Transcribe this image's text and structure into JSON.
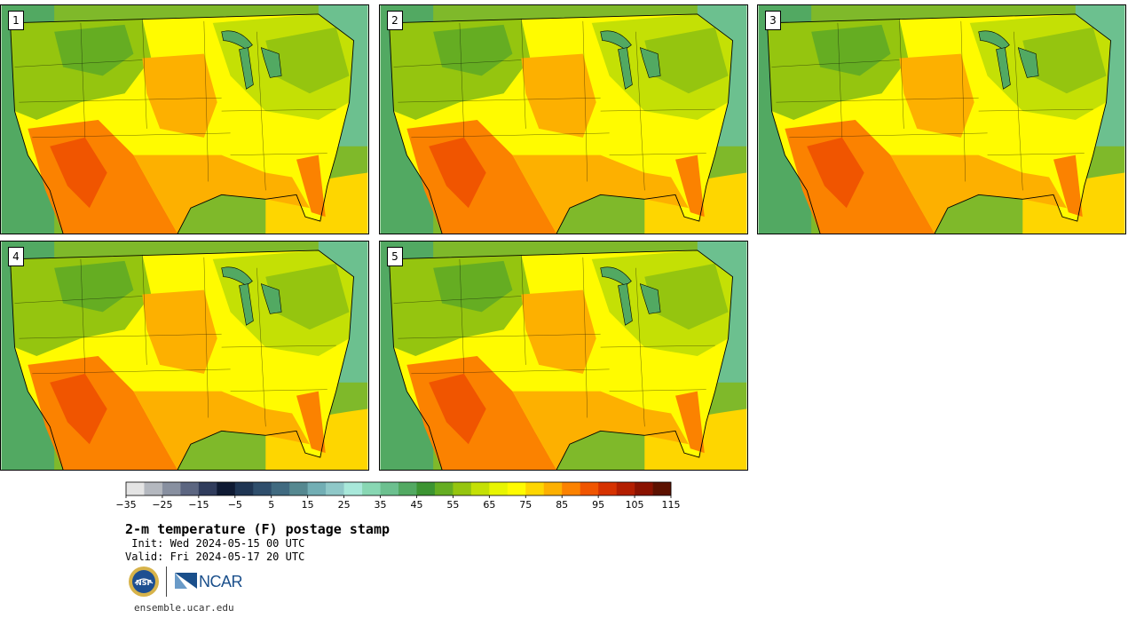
{
  "panels": [
    {
      "label": "1"
    },
    {
      "label": "2"
    },
    {
      "label": "3"
    },
    {
      "label": "4"
    },
    {
      "label": "5"
    }
  ],
  "colorbar": {
    "colors": [
      "#e4e4e4",
      "#b4b8bf",
      "#8890a0",
      "#5c6681",
      "#303c5c",
      "#0f1a33",
      "#1f3553",
      "#2f4e6c",
      "#406a80",
      "#558890",
      "#72aeb4",
      "#8fc8c8",
      "#a8e8da",
      "#88d7b3",
      "#6cc08f",
      "#52a962",
      "#3c9432",
      "#65ad22",
      "#95c50f",
      "#c4e005",
      "#e8f500",
      "#fffb00",
      "#fed600",
      "#fdb000",
      "#fb8200",
      "#f05500",
      "#d63200",
      "#b31e00",
      "#8a1200",
      "#5c1100"
    ],
    "tick_labels": [
      "−35",
      "−25",
      "−15",
      "−5",
      "5",
      "15",
      "25",
      "35",
      "45",
      "55",
      "65",
      "75",
      "85",
      "95",
      "105",
      "115"
    ]
  },
  "title": "2-m temperature (F) postage stamp",
  "init": " Init: Wed 2024-05-15 00 UTC",
  "valid": "Valid: Fri 2024-05-17 20 UTC",
  "logos": {
    "nsf": "NSF",
    "ncar": "NCAR"
  },
  "site": "ensemble.ucar.edu"
}
